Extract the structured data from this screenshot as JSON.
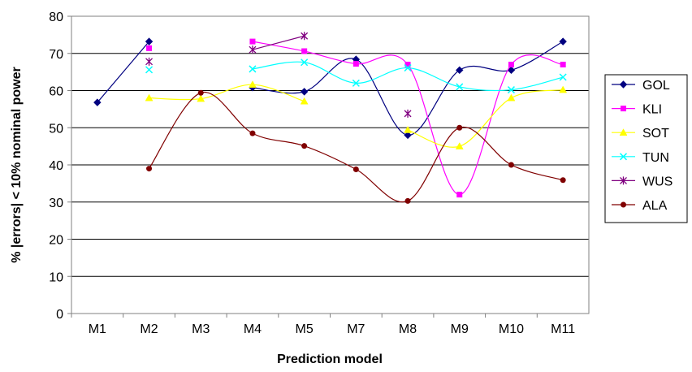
{
  "chart_data": {
    "type": "line",
    "xlabel": "Prediction model",
    "ylabel": "% |errors| < 10% nominal power",
    "categories": [
      "M1",
      "M2",
      "M3",
      "M4",
      "M5",
      "M7",
      "M8",
      "M9",
      "M10",
      "M11"
    ],
    "ylim": [
      0,
      80
    ],
    "yticks": [
      0,
      10,
      20,
      30,
      40,
      50,
      60,
      70,
      80
    ],
    "grid": "horizontal",
    "legend_position": "right",
    "series": [
      {
        "name": "GOL",
        "color": "#000080",
        "marker": "diamond",
        "values": [
          56.8,
          73.2,
          null,
          60.8,
          59.7,
          68.4,
          48.0,
          65.5,
          65.5,
          73.2
        ]
      },
      {
        "name": "KLI",
        "color": "#ff00ff",
        "marker": "square",
        "values": [
          null,
          71.4,
          null,
          73.2,
          70.6,
          67.2,
          67.0,
          32.0,
          67.0,
          67.0
        ]
      },
      {
        "name": "SOT",
        "color": "#ffff00",
        "marker": "triangle",
        "values": [
          null,
          58.0,
          57.8,
          61.6,
          57.1,
          null,
          49.4,
          45.0,
          58.0,
          60.2
        ]
      },
      {
        "name": "TUN",
        "color": "#00ffff",
        "marker": "x",
        "values": [
          null,
          65.6,
          null,
          65.8,
          67.6,
          62.0,
          66.1,
          61.0,
          60.2,
          63.6
        ]
      },
      {
        "name": "WUS",
        "color": "#800080",
        "marker": "star",
        "values": [
          null,
          67.8,
          null,
          71.0,
          74.7,
          null,
          53.8,
          null,
          null,
          null
        ]
      },
      {
        "name": "ALA",
        "color": "#800000",
        "marker": "circle",
        "values": [
          null,
          39.0,
          59.4,
          48.5,
          45.1,
          38.8,
          30.3,
          50.0,
          40.0,
          35.9
        ]
      }
    ]
  }
}
